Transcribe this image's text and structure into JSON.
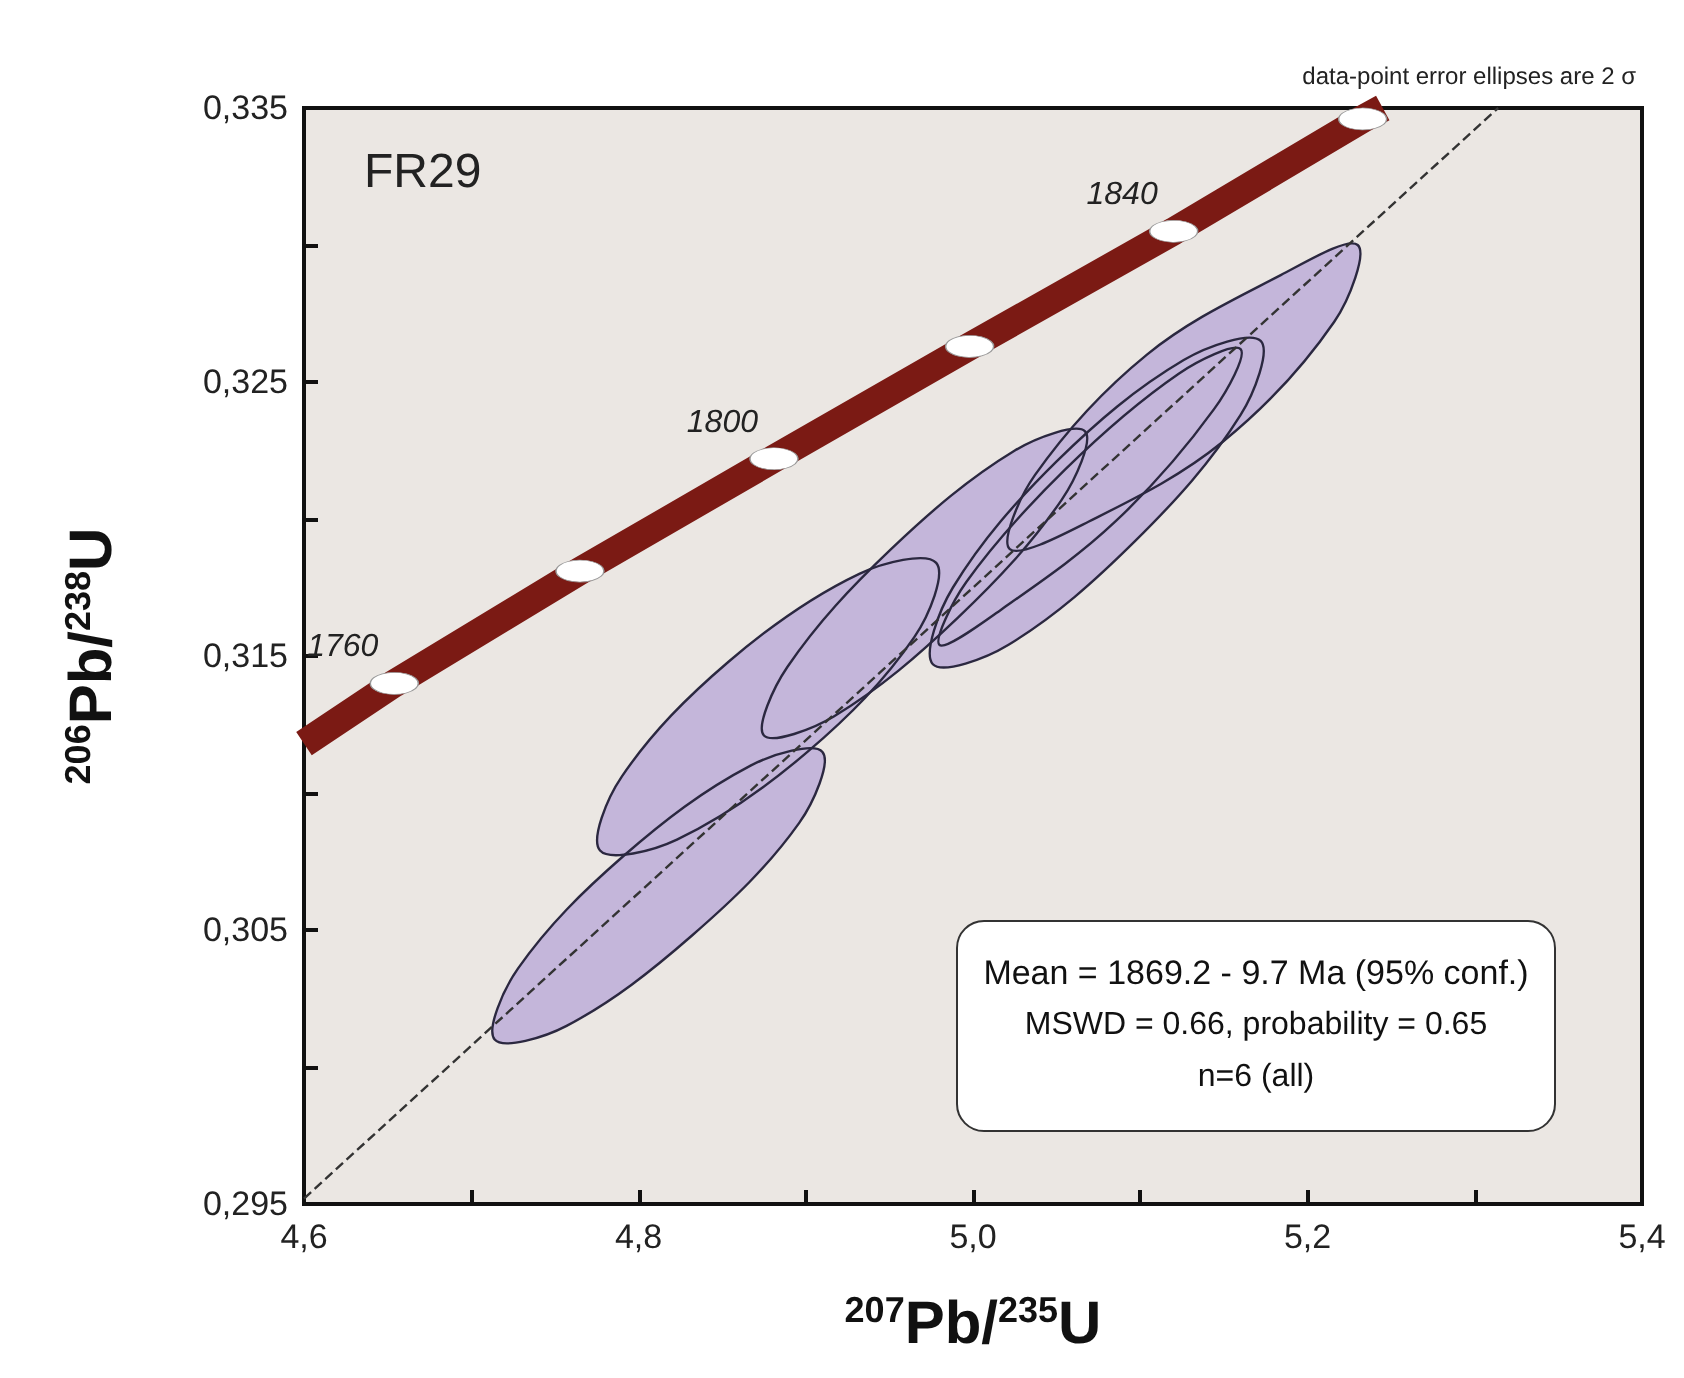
{
  "chart_data": {
    "type": "line",
    "xlabel": "$^{207}$Pb/$^{235}$U",
    "ylabel": "$^{206}$Pb/$^{238}$U",
    "annotations": [
      "FR29",
      "data-point error ellipses are 2 σ",
      "Mean = 1869.2 - 9.7 Ma (95% conf.)",
      "MSWD = 0.66, probability = 0.65",
      "n=6 (all)",
      {
        "text": "1760",
        "x": 4.654,
        "y": 0.314
      },
      {
        "text": "1800",
        "x": 4.881,
        "y": 0.3222
      },
      {
        "text": "1840",
        "x": 5.12,
        "y": 0.3305
      }
    ],
    "xlim": [
      4.6,
      5.4
    ],
    "xticks": [
      {
        "value": 4.6,
        "label": "4,6"
      },
      {
        "value": 4.7,
        "label": null
      },
      {
        "value": 4.8,
        "label": "4,8"
      },
      {
        "value": 4.9,
        "label": null
      },
      {
        "value": 5.0,
        "label": "5,0"
      },
      {
        "value": 5.1,
        "label": null
      },
      {
        "value": 5.2,
        "label": "5,2"
      },
      {
        "value": 5.3,
        "label": null
      },
      {
        "value": 5.4,
        "label": "5,4"
      }
    ],
    "ylim": [
      0.295,
      0.335
    ],
    "yticks": [
      {
        "value": 0.295,
        "label": "0,295"
      },
      {
        "value": 0.3,
        "label": null
      },
      {
        "value": 0.305,
        "label": "0,305"
      },
      {
        "value": 0.31,
        "label": null
      },
      {
        "value": 0.315,
        "label": "0,315"
      },
      {
        "value": 0.32,
        "label": null
      },
      {
        "value": 0.325,
        "label": "0,325"
      },
      {
        "value": 0.33,
        "label": null
      },
      {
        "value": 0.335,
        "label": "0,335"
      }
    ],
    "grid": false,
    "series": [
      {
        "color": "#333333",
        "line_style": "dashed",
        "x": [
          4.6,
          5.314
        ],
        "values": [
          0.2952,
          0.335
        ]
      },
      {
        "color": "#7b1a14",
        "line_style": "solid",
        "x": [
          4.6,
          4.654,
          4.765,
          4.881,
          4.998,
          5.12,
          5.233,
          5.245
        ],
        "values": [
          0.3118,
          0.314,
          0.3181,
          0.3222,
          0.3263,
          0.3305,
          0.3346,
          0.335
        ]
      },
      {
        "type": "scatter",
        "color": "#ffffff",
        "marker": "circle",
        "x": [
          4.654,
          4.765,
          4.881,
          4.998,
          5.12,
          5.233
        ],
        "values": [
          0.314,
          0.3181,
          0.3222,
          0.3263,
          0.3305,
          0.3346
        ]
      },
      {
        "type": "area",
        "color": "#c4b6da",
        "x": [
          5.23,
          5.216,
          5.149,
          5.069,
          5.022,
          5.037,
          5.104,
          5.184
        ],
        "values": [
          0.33,
          0.3272,
          0.3228,
          0.3199,
          0.3189,
          0.3216,
          0.326,
          0.3289
        ]
      },
      {
        "type": "area",
        "color": "#c4b6da",
        "x": [
          4.978,
          4.965,
          4.901,
          4.823,
          4.777,
          4.79,
          4.854,
          4.932
        ],
        "values": [
          0.3184,
          0.3157,
          0.3115,
          0.3083,
          0.3079,
          0.3106,
          0.3148,
          0.318
        ]
      },
      {
        "type": "area",
        "color": "#c4b6da",
        "x": [
          5.067,
          5.053,
          4.991,
          4.917,
          4.875,
          4.889,
          4.951,
          5.025
        ],
        "values": [
          0.3232,
          0.3207,
          0.3164,
          0.3128,
          0.3121,
          0.3146,
          0.3189,
          0.3225
        ]
      },
      {
        "type": "area",
        "color": "#c4b6da",
        "x": [
          5.172,
          5.16,
          5.097,
          5.021,
          4.976,
          4.988,
          5.05,
          5.126
        ],
        "values": [
          0.3265,
          0.3238,
          0.3192,
          0.3154,
          0.3147,
          0.3175,
          0.3221,
          0.3258
        ]
      },
      {
        "type": "area",
        "color": "#c4b6da",
        "x": [
          5.16,
          5.144,
          5.085,
          5.017,
          4.98,
          4.996,
          5.055,
          5.123
        ],
        "values": [
          0.3262,
          0.324,
          0.3199,
          0.3167,
          0.3154,
          0.3177,
          0.3218,
          0.3253
        ]
      },
      {
        "type": "area",
        "color": "#c4b6da",
        "x": [
          4.91,
          4.896,
          4.832,
          4.757,
          4.714,
          4.728,
          4.791,
          4.867
        ],
        "values": [
          0.3115,
          0.3089,
          0.3048,
          0.3015,
          0.301,
          0.3036,
          0.3077,
          0.311
        ]
      }
    ]
  }
}
